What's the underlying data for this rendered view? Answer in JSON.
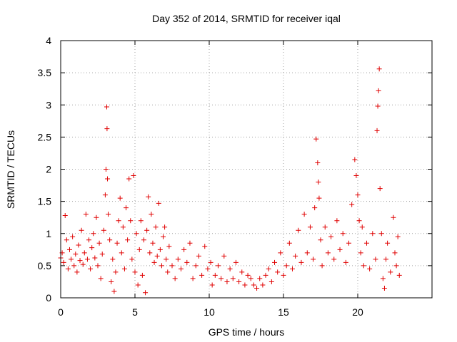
{
  "chart_data": {
    "type": "scatter",
    "title": "Day 352 of 2014, SRMTID for receiver iqal",
    "xlabel": "GPS time / hours",
    "ylabel": "SRMTID / TECUs",
    "xlim": [
      0,
      25
    ],
    "ylim": [
      0,
      4
    ],
    "xticks": [
      0,
      5,
      10,
      15,
      20
    ],
    "xtick_labels": [
      "0",
      "5",
      "10",
      "15",
      "20"
    ],
    "yticks": [
      0,
      0.5,
      1,
      1.5,
      2,
      2.5,
      3,
      3.5,
      4
    ],
    "ytick_labels": [
      "0",
      "0.5",
      "1",
      "1.5",
      "2",
      "2.5",
      "3",
      "3.5",
      "4"
    ],
    "grid": true,
    "marker": "+",
    "color": "#e00000",
    "series": [
      {
        "name": "iqal",
        "points": [
          [
            0.0,
            0.62
          ],
          [
            0.1,
            0.7
          ],
          [
            0.2,
            0.55
          ],
          [
            0.3,
            1.28
          ],
          [
            0.4,
            0.9
          ],
          [
            0.5,
            0.45
          ],
          [
            0.6,
            0.75
          ],
          [
            0.7,
            0.6
          ],
          [
            0.8,
            0.95
          ],
          [
            0.9,
            0.5
          ],
          [
            1.0,
            0.68
          ],
          [
            1.1,
            0.4
          ],
          [
            1.2,
            0.82
          ],
          [
            1.3,
            0.58
          ],
          [
            1.4,
            1.05
          ],
          [
            1.5,
            0.52
          ],
          [
            1.6,
            0.7
          ],
          [
            1.7,
            1.3
          ],
          [
            1.8,
            0.6
          ],
          [
            1.9,
            0.9
          ],
          [
            2.0,
            0.45
          ],
          [
            2.1,
            0.78
          ],
          [
            2.2,
            1.0
          ],
          [
            2.3,
            0.62
          ],
          [
            2.4,
            1.25
          ],
          [
            2.5,
            0.5
          ],
          [
            2.6,
            0.85
          ],
          [
            2.7,
            0.3
          ],
          [
            2.8,
            0.68
          ],
          [
            2.9,
            1.05
          ],
          [
            3.0,
            1.6
          ],
          [
            3.05,
            2.0
          ],
          [
            3.1,
            2.97
          ],
          [
            3.12,
            2.63
          ],
          [
            3.15,
            1.85
          ],
          [
            3.2,
            1.3
          ],
          [
            3.3,
            0.9
          ],
          [
            3.4,
            0.25
          ],
          [
            3.5,
            0.6
          ],
          [
            3.6,
            0.1
          ],
          [
            3.7,
            0.4
          ],
          [
            3.8,
            0.85
          ],
          [
            3.9,
            1.2
          ],
          [
            4.0,
            1.55
          ],
          [
            4.1,
            0.7
          ],
          [
            4.2,
            1.1
          ],
          [
            4.3,
            0.45
          ],
          [
            4.4,
            1.4
          ],
          [
            4.5,
            0.9
          ],
          [
            4.6,
            1.85
          ],
          [
            4.7,
            1.2
          ],
          [
            4.8,
            0.6
          ],
          [
            4.9,
            1.9
          ],
          [
            5.0,
            0.4
          ],
          [
            5.1,
            1.0
          ],
          [
            5.2,
            0.2
          ],
          [
            5.3,
            0.75
          ],
          [
            5.4,
            1.2
          ],
          [
            5.5,
            0.35
          ],
          [
            5.6,
            0.9
          ],
          [
            5.7,
            0.08
          ],
          [
            5.8,
            1.05
          ],
          [
            5.9,
            1.57
          ],
          [
            6.0,
            0.7
          ],
          [
            6.1,
            1.3
          ],
          [
            6.2,
            0.85
          ],
          [
            6.3,
            0.55
          ],
          [
            6.4,
            1.1
          ],
          [
            6.5,
            0.65
          ],
          [
            6.6,
            1.47
          ],
          [
            6.7,
            0.75
          ],
          [
            6.8,
            0.5
          ],
          [
            6.9,
            0.95
          ],
          [
            7.0,
            1.1
          ],
          [
            7.1,
            0.6
          ],
          [
            7.2,
            0.4
          ],
          [
            7.3,
            0.8
          ],
          [
            7.5,
            0.5
          ],
          [
            7.7,
            0.3
          ],
          [
            7.9,
            0.6
          ],
          [
            8.1,
            0.45
          ],
          [
            8.3,
            0.75
          ],
          [
            8.5,
            0.55
          ],
          [
            8.7,
            0.85
          ],
          [
            8.9,
            0.3
          ],
          [
            9.1,
            0.5
          ],
          [
            9.3,
            0.65
          ],
          [
            9.5,
            0.35
          ],
          [
            9.7,
            0.8
          ],
          [
            9.9,
            0.45
          ],
          [
            10.1,
            0.55
          ],
          [
            10.2,
            0.2
          ],
          [
            10.4,
            0.35
          ],
          [
            10.6,
            0.5
          ],
          [
            10.8,
            0.3
          ],
          [
            11.0,
            0.65
          ],
          [
            11.2,
            0.25
          ],
          [
            11.4,
            0.45
          ],
          [
            11.6,
            0.3
          ],
          [
            11.8,
            0.55
          ],
          [
            12.0,
            0.25
          ],
          [
            12.2,
            0.4
          ],
          [
            12.4,
            0.2
          ],
          [
            12.6,
            0.35
          ],
          [
            12.8,
            0.3
          ],
          [
            13.0,
            0.2
          ],
          [
            13.2,
            0.15
          ],
          [
            13.4,
            0.3
          ],
          [
            13.6,
            0.2
          ],
          [
            13.8,
            0.35
          ],
          [
            14.0,
            0.45
          ],
          [
            14.2,
            0.25
          ],
          [
            14.4,
            0.55
          ],
          [
            14.6,
            0.4
          ],
          [
            14.8,
            0.7
          ],
          [
            15.0,
            0.35
          ],
          [
            15.2,
            0.5
          ],
          [
            15.4,
            0.85
          ],
          [
            15.6,
            0.45
          ],
          [
            15.8,
            0.65
          ],
          [
            16.0,
            1.05
          ],
          [
            16.2,
            0.55
          ],
          [
            16.4,
            1.3
          ],
          [
            16.6,
            0.7
          ],
          [
            16.8,
            1.1
          ],
          [
            17.0,
            0.6
          ],
          [
            17.1,
            1.4
          ],
          [
            17.2,
            2.47
          ],
          [
            17.3,
            2.1
          ],
          [
            17.35,
            1.8
          ],
          [
            17.4,
            1.55
          ],
          [
            17.5,
            0.9
          ],
          [
            17.6,
            0.5
          ],
          [
            17.8,
            1.1
          ],
          [
            18.0,
            0.7
          ],
          [
            18.2,
            0.95
          ],
          [
            18.4,
            0.6
          ],
          [
            18.6,
            1.2
          ],
          [
            18.8,
            0.75
          ],
          [
            19.0,
            1.0
          ],
          [
            19.2,
            0.55
          ],
          [
            19.4,
            0.85
          ],
          [
            19.6,
            1.45
          ],
          [
            19.8,
            2.15
          ],
          [
            19.9,
            1.9
          ],
          [
            20.0,
            1.6
          ],
          [
            20.1,
            1.2
          ],
          [
            20.2,
            0.7
          ],
          [
            20.3,
            1.1
          ],
          [
            20.4,
            0.5
          ],
          [
            20.6,
            0.85
          ],
          [
            20.8,
            0.45
          ],
          [
            21.0,
            1.0
          ],
          [
            21.2,
            0.6
          ],
          [
            21.3,
            2.6
          ],
          [
            21.35,
            2.98
          ],
          [
            21.4,
            3.22
          ],
          [
            21.45,
            3.56
          ],
          [
            21.5,
            1.7
          ],
          [
            21.6,
            1.0
          ],
          [
            21.7,
            0.3
          ],
          [
            21.8,
            0.15
          ],
          [
            21.9,
            0.6
          ],
          [
            22.0,
            0.85
          ],
          [
            22.2,
            0.4
          ],
          [
            22.4,
            1.25
          ],
          [
            22.5,
            0.7
          ],
          [
            22.6,
            0.5
          ],
          [
            22.7,
            0.95
          ],
          [
            22.8,
            0.35
          ]
        ]
      }
    ]
  }
}
